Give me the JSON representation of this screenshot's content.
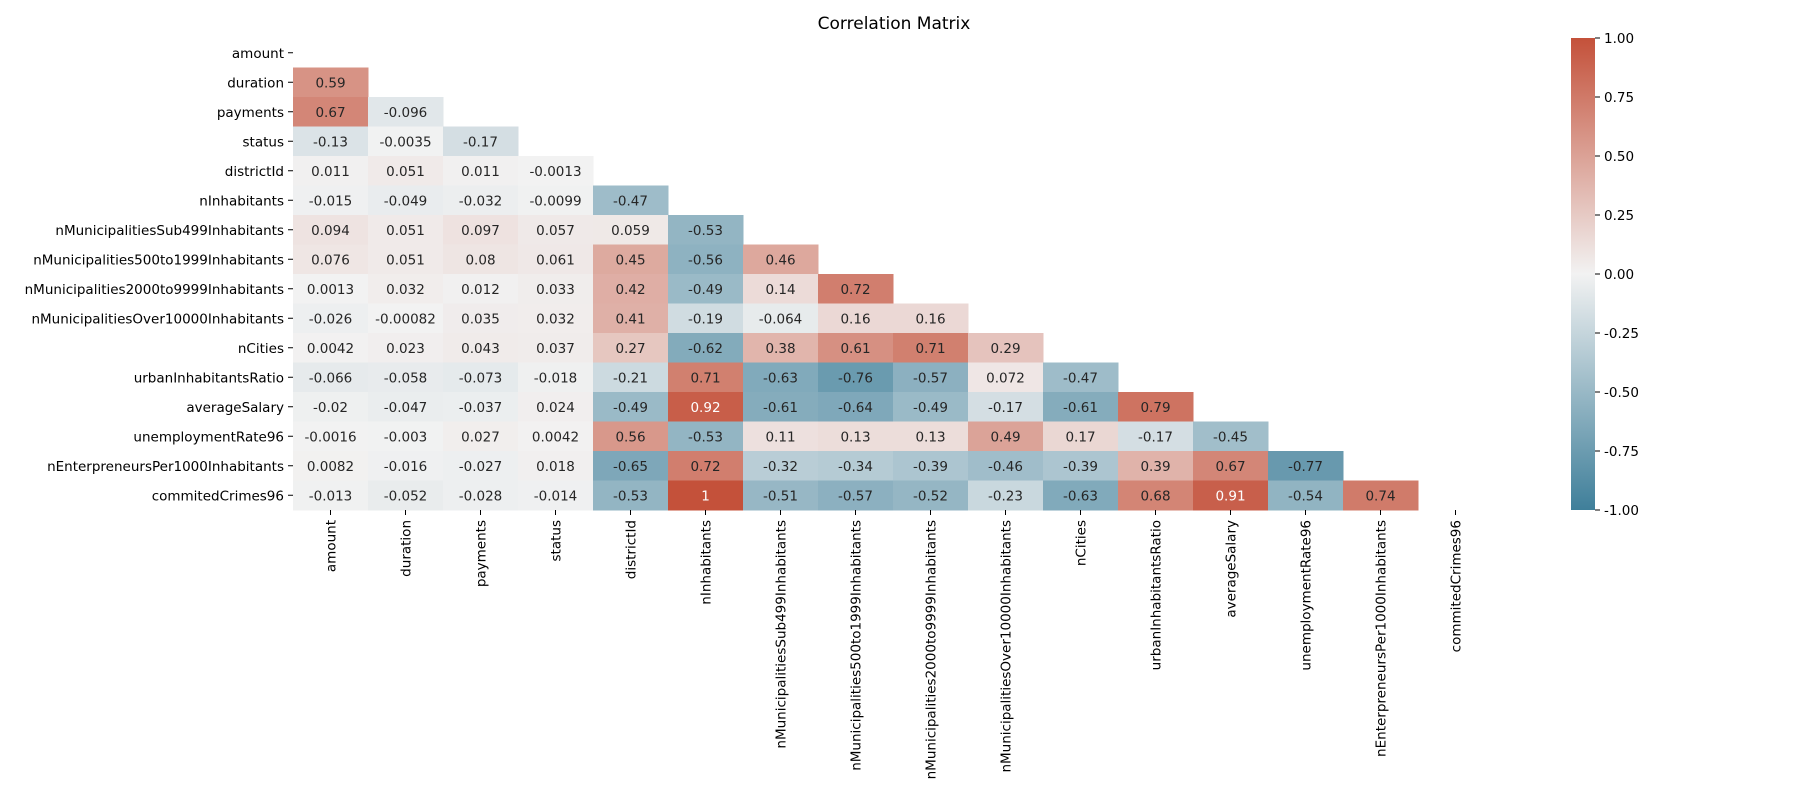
{
  "chart_data": {
    "type": "heatmap",
    "title": "Correlation Matrix",
    "variables": [
      "amount",
      "duration",
      "payments",
      "status",
      "districtId",
      "nInhabitants",
      "nMunicipalitiesSub499Inhabitants",
      "nMunicipalities500to1999Inhabitants",
      "nMunicipalities2000to9999Inhabitants",
      "nMunicipalitiesOver10000Inhabitants",
      "nCities",
      "urbanInhabitantsRatio",
      "averageSalary",
      "unemploymentRate96",
      "nEnterpreneursPer1000Inhabitants",
      "commitedCrimes96"
    ],
    "mask": "upper-triangle-including-diagonal",
    "lower_triangle": [
      [],
      [
        "0.59"
      ],
      [
        "0.67",
        "-0.096"
      ],
      [
        "-0.13",
        "-0.0035",
        "-0.17"
      ],
      [
        "0.011",
        "0.051",
        "0.011",
        "-0.0013"
      ],
      [
        "-0.015",
        "-0.049",
        "-0.032",
        "-0.0099",
        "-0.47"
      ],
      [
        "0.094",
        "0.051",
        "0.097",
        "0.057",
        "0.059",
        "-0.53"
      ],
      [
        "0.076",
        "0.051",
        "0.08",
        "0.061",
        "0.45",
        "-0.56",
        "0.46"
      ],
      [
        "0.0013",
        "0.032",
        "0.012",
        "0.033",
        "0.42",
        "-0.49",
        "0.14",
        "0.72"
      ],
      [
        "-0.026",
        "-0.00082",
        "0.035",
        "0.032",
        "0.41",
        "-0.19",
        "-0.064",
        "0.16",
        "0.16"
      ],
      [
        "0.0042",
        "0.023",
        "0.043",
        "0.037",
        "0.27",
        "-0.62",
        "0.38",
        "0.61",
        "0.71",
        "0.29"
      ],
      [
        "-0.066",
        "-0.058",
        "-0.073",
        "-0.018",
        "-0.21",
        "0.71",
        "-0.63",
        "-0.76",
        "-0.57",
        "0.072",
        "-0.47"
      ],
      [
        "-0.02",
        "-0.047",
        "-0.037",
        "0.024",
        "-0.49",
        "0.92",
        "-0.61",
        "-0.64",
        "-0.49",
        "-0.17",
        "-0.61",
        "0.79"
      ],
      [
        "-0.0016",
        "-0.003",
        "0.027",
        "0.0042",
        "0.56",
        "-0.53",
        "0.11",
        "0.13",
        "0.13",
        "0.49",
        "0.17",
        "-0.17",
        "-0.45"
      ],
      [
        "0.0082",
        "-0.016",
        "-0.027",
        "0.018",
        "-0.65",
        "0.72",
        "-0.32",
        "-0.34",
        "-0.39",
        "-0.46",
        "-0.39",
        "0.39",
        "0.67",
        "-0.77"
      ],
      [
        "-0.013",
        "-0.052",
        "-0.028",
        "-0.014",
        "-0.53",
        "1",
        "-0.51",
        "-0.57",
        "-0.52",
        "-0.23",
        "-0.63",
        "0.68",
        "0.91",
        "-0.54",
        "0.74"
      ]
    ],
    "color_scale": {
      "vmin": -1,
      "vmax": 1,
      "low_color": "#3f7f9a",
      "mid_color": "#f2f2f2",
      "high_color": "#c4513a"
    },
    "colorbar": {
      "ticks": [
        "1.00",
        "0.75",
        "0.50",
        "0.25",
        "0.00",
        "-0.25",
        "-0.50",
        "-0.75",
        "-1.00"
      ],
      "placement": "right"
    }
  }
}
